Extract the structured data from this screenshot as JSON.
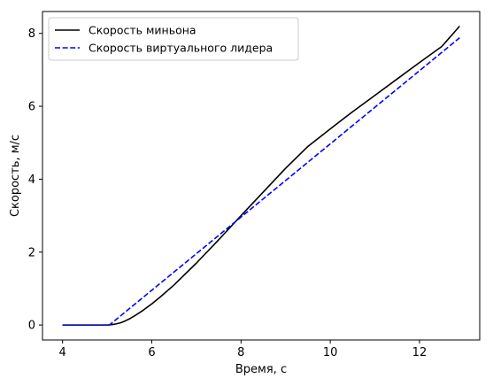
{
  "chart_data": {
    "type": "line",
    "title": "",
    "xlabel": "Время, с",
    "ylabel": "Скорость, м/с",
    "xlim": [
      3.55,
      13.35
    ],
    "ylim": [
      -0.41,
      8.6
    ],
    "xticks": [
      4,
      6,
      8,
      10,
      12
    ],
    "yticks": [
      0,
      2,
      4,
      6,
      8
    ],
    "xtick_labels": [
      "4",
      "6",
      "8",
      "10",
      "12"
    ],
    "ytick_labels": [
      "0",
      "2",
      "4",
      "6",
      "8"
    ],
    "grid": false,
    "legend_position": "top-left",
    "series": [
      {
        "name": "Скорость миньона",
        "color": "#000000",
        "style": "solid",
        "x": [
          4.0,
          5.0,
          5.1,
          5.2,
          5.3,
          5.4,
          5.5,
          5.6,
          5.8,
          6.0,
          6.2,
          6.5,
          7.0,
          7.5,
          8.0,
          8.5,
          9.0,
          9.5,
          10.0,
          10.5,
          11.0,
          11.5,
          12.0,
          12.5,
          12.9
        ],
        "y": [
          0.0,
          0.0,
          0.01,
          0.03,
          0.06,
          0.11,
          0.17,
          0.24,
          0.4,
          0.58,
          0.78,
          1.1,
          1.7,
          2.34,
          3.0,
          3.65,
          4.3,
          4.9,
          5.38,
          5.85,
          6.3,
          6.75,
          7.2,
          7.64,
          8.2
        ]
      },
      {
        "name": "Скорость виртуального лидера",
        "color": "#0000ff",
        "style": "dashed",
        "x": [
          4.0,
          5.05,
          12.9
        ],
        "y": [
          0.0,
          0.0,
          7.88
        ]
      }
    ]
  }
}
